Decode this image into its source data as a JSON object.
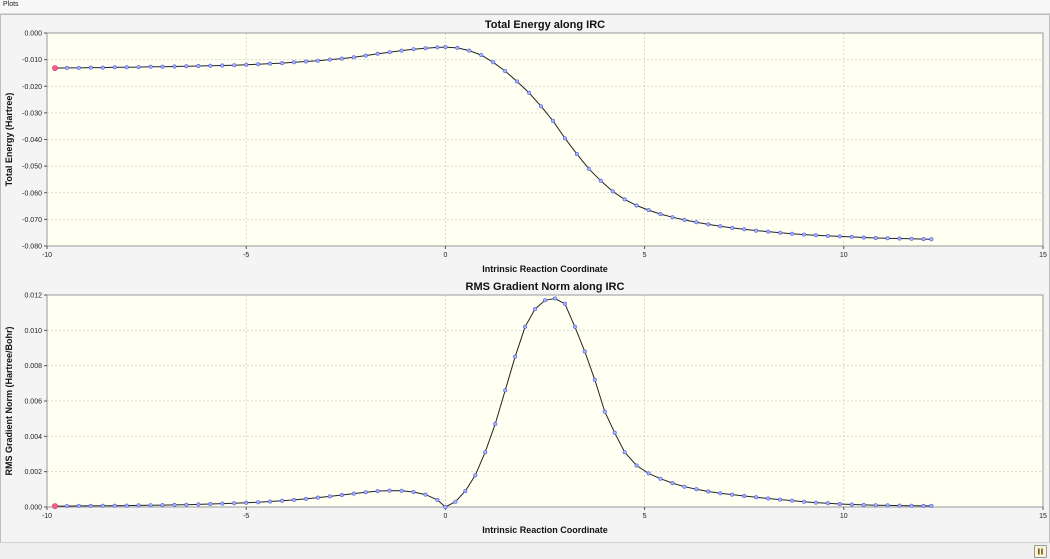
{
  "window": {
    "title": "Plots"
  },
  "colors": {
    "plot_bg": "#fffff2",
    "grid": "#cfcfcf",
    "line": "#222222",
    "marker_fill": "#aab3ff",
    "marker_stroke": "#5060d8",
    "first_marker": "#ff5a8c"
  },
  "statusbar": {
    "icon": "pause-icon"
  },
  "chart_data": [
    {
      "type": "line",
      "title": "Total Energy along IRC",
      "xlabel": "Intrinsic Reaction Coordinate",
      "ylabel": "Total Energy (Hartree)",
      "xlim": [
        -10,
        15
      ],
      "ylim": [
        -0.08,
        0.0
      ],
      "xticks": [
        -10,
        -5,
        0,
        5,
        10,
        15
      ],
      "xtick_labels": [
        "-10",
        "-5",
        "0",
        "5",
        "10",
        "15"
      ],
      "yticks": [
        0.0,
        -0.01,
        -0.02,
        -0.03,
        -0.04,
        -0.05,
        -0.06,
        -0.07,
        -0.08
      ],
      "ytick_labels": [
        "0.000",
        "-0.010",
        "-0.020",
        "-0.030",
        "-0.040",
        "-0.050",
        "-0.060",
        "-0.070",
        "-0.080"
      ],
      "grid": true,
      "x": [
        -9.8,
        -9.5,
        -9.2,
        -8.9,
        -8.6,
        -8.3,
        -8.0,
        -7.7,
        -7.4,
        -7.1,
        -6.8,
        -6.5,
        -6.2,
        -5.9,
        -5.6,
        -5.3,
        -5.0,
        -4.7,
        -4.4,
        -4.1,
        -3.8,
        -3.5,
        -3.2,
        -2.9,
        -2.6,
        -2.3,
        -2.0,
        -1.7,
        -1.4,
        -1.1,
        -0.8,
        -0.5,
        -0.2,
        0.0,
        0.3,
        0.6,
        0.9,
        1.2,
        1.5,
        1.8,
        2.1,
        2.4,
        2.7,
        3.0,
        3.3,
        3.6,
        3.9,
        4.2,
        4.5,
        4.8,
        5.1,
        5.4,
        5.7,
        6.0,
        6.3,
        6.6,
        6.9,
        7.2,
        7.5,
        7.8,
        8.1,
        8.4,
        8.7,
        9.0,
        9.3,
        9.6,
        9.9,
        10.2,
        10.5,
        10.8,
        11.1,
        11.4,
        11.7,
        12.0,
        12.2
      ],
      "y": [
        -0.0132,
        -0.0131,
        -0.0131,
        -0.013,
        -0.013,
        -0.0129,
        -0.0129,
        -0.0128,
        -0.0127,
        -0.0127,
        -0.0126,
        -0.0125,
        -0.0124,
        -0.0123,
        -0.0122,
        -0.0121,
        -0.0119,
        -0.0117,
        -0.0115,
        -0.0113,
        -0.011,
        -0.0107,
        -0.0104,
        -0.01,
        -0.0096,
        -0.0091,
        -0.0085,
        -0.0078,
        -0.0072,
        -0.0066,
        -0.0061,
        -0.0057,
        -0.0054,
        -0.0053,
        -0.0056,
        -0.0066,
        -0.0083,
        -0.011,
        -0.0143,
        -0.0182,
        -0.0225,
        -0.0275,
        -0.033,
        -0.0395,
        -0.0455,
        -0.051,
        -0.0555,
        -0.0595,
        -0.0625,
        -0.0648,
        -0.0665,
        -0.068,
        -0.0692,
        -0.0702,
        -0.0711,
        -0.0719,
        -0.0726,
        -0.0732,
        -0.0737,
        -0.0742,
        -0.0746,
        -0.075,
        -0.0754,
        -0.0757,
        -0.076,
        -0.0762,
        -0.0764,
        -0.0766,
        -0.0768,
        -0.077,
        -0.0771,
        -0.0772,
        -0.0773,
        -0.0774,
        -0.0775
      ]
    },
    {
      "type": "line",
      "title": "RMS Gradient Norm along IRC",
      "xlabel": "Intrinsic Reaction Coordinate",
      "ylabel": "RMS Gradient Norm (Hartree/Bohr)",
      "xlim": [
        -10,
        15
      ],
      "ylim": [
        0.0,
        0.012
      ],
      "xticks": [
        -10,
        -5,
        0,
        5,
        10,
        15
      ],
      "xtick_labels": [
        "-10",
        "-5",
        "0",
        "5",
        "10",
        "15"
      ],
      "yticks": [
        0.0,
        0.002,
        0.004,
        0.006,
        0.008,
        0.01,
        0.012
      ],
      "ytick_labels": [
        "0.000",
        "0.002",
        "0.004",
        "0.006",
        "0.008",
        "0.010",
        "0.012"
      ],
      "grid": true,
      "x": [
        -9.8,
        -9.5,
        -9.2,
        -8.9,
        -8.6,
        -8.3,
        -8.0,
        -7.7,
        -7.4,
        -7.1,
        -6.8,
        -6.5,
        -6.2,
        -5.9,
        -5.6,
        -5.3,
        -5.0,
        -4.7,
        -4.4,
        -4.1,
        -3.8,
        -3.5,
        -3.2,
        -2.9,
        -2.6,
        -2.3,
        -2.0,
        -1.7,
        -1.4,
        -1.1,
        -0.8,
        -0.5,
        -0.2,
        0.0,
        0.25,
        0.5,
        0.75,
        1.0,
        1.25,
        1.5,
        1.75,
        2.0,
        2.25,
        2.5,
        2.75,
        3.0,
        3.25,
        3.5,
        3.75,
        4.0,
        4.25,
        4.5,
        4.8,
        5.1,
        5.4,
        5.7,
        6.0,
        6.3,
        6.6,
        6.9,
        7.2,
        7.5,
        7.8,
        8.1,
        8.4,
        8.7,
        9.0,
        9.3,
        9.6,
        9.9,
        10.2,
        10.5,
        10.8,
        11.1,
        11.4,
        11.7,
        12.0,
        12.2
      ],
      "y": [
        5e-05,
        5e-05,
        6e-05,
        6e-05,
        7e-05,
        7e-05,
        8e-05,
        9e-05,
        0.0001,
        0.00011,
        0.00012,
        0.00013,
        0.00015,
        0.00017,
        0.00019,
        0.00021,
        0.00024,
        0.00027,
        0.00031,
        0.00035,
        0.0004,
        0.00046,
        0.00053,
        0.0006,
        0.00068,
        0.00076,
        0.00084,
        0.0009,
        0.00093,
        0.00092,
        0.00085,
        0.0007,
        0.0004,
        0.0,
        0.0003,
        0.0009,
        0.0018,
        0.0031,
        0.0047,
        0.0066,
        0.0085,
        0.0102,
        0.0112,
        0.0117,
        0.0118,
        0.0115,
        0.0102,
        0.0088,
        0.0072,
        0.0054,
        0.0042,
        0.0031,
        0.00235,
        0.0019,
        0.0016,
        0.00135,
        0.00115,
        0.001,
        0.00088,
        0.00078,
        0.0007,
        0.00062,
        0.00055,
        0.00048,
        0.00042,
        0.00036,
        0.0003,
        0.00025,
        0.00021,
        0.00017,
        0.00014,
        0.00012,
        0.0001,
        9e-05,
        8e-05,
        7e-05,
        6e-05,
        6e-05
      ]
    }
  ]
}
